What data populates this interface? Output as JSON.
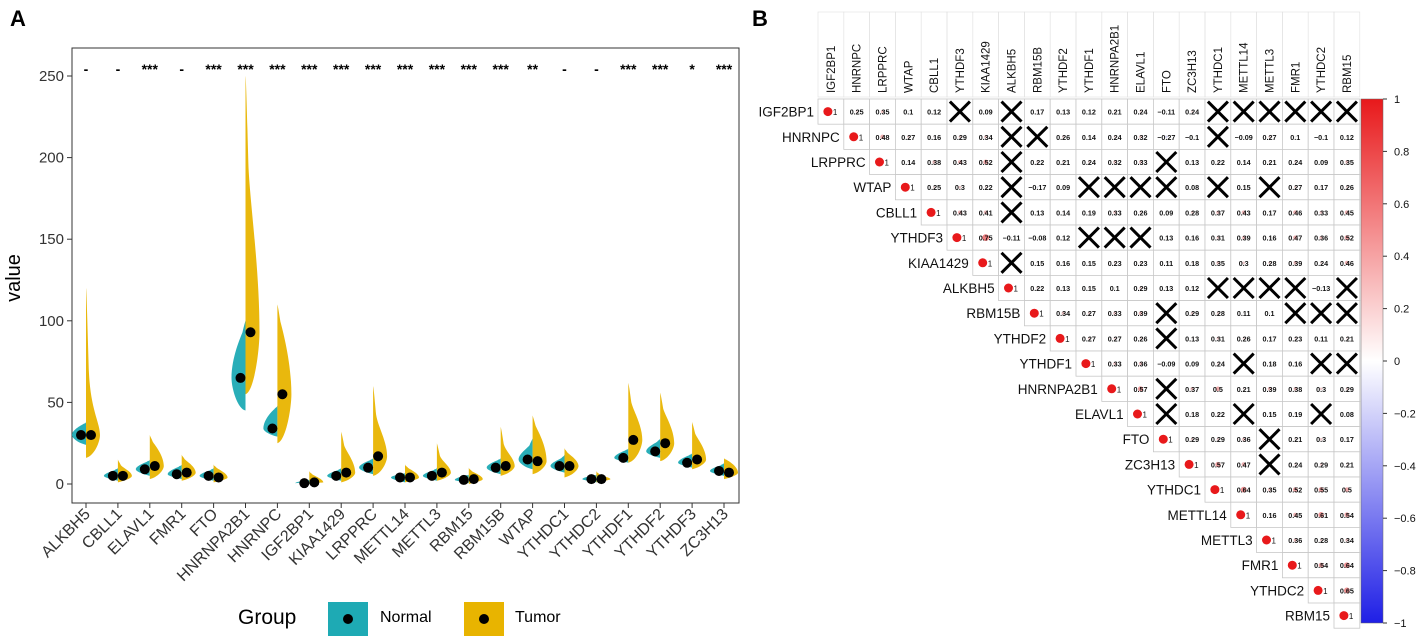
{
  "colors": {
    "normal": "#1eaab4",
    "tumor": "#e8b400",
    "sig_text": "#000000",
    "dot": "#000000",
    "corr_pos": "#e8191b",
    "corr_neg": "#1f1fe6",
    "cell_border": "#c8c8c8",
    "plot_border": "#333333"
  },
  "chart_data": [
    {
      "panel_label": "A",
      "type": "violin",
      "title": "",
      "xlabel": "",
      "ylabel": "value",
      "ylim": [
        -5,
        262
      ],
      "yticks": [
        0,
        50,
        100,
        150,
        200,
        250
      ],
      "categories": [
        "ALKBH5",
        "CBLL1",
        "ELAVL1",
        "FMR1",
        "FTO",
        "HNRNPA2B1",
        "HNRNPC",
        "IGF2BP1",
        "KIAA1429",
        "LRPPRC",
        "METTL14",
        "METTL3",
        "RBM15",
        "RBM15B",
        "WTAP",
        "YTHDC1",
        "YTHDC2",
        "YTHDF1",
        "YTHDF2",
        "YTHDF3",
        "ZC3H13"
      ],
      "significance": [
        "-",
        "-",
        "***",
        "-",
        "***",
        "***",
        "***",
        "***",
        "***",
        "***",
        "***",
        "***",
        "***",
        "***",
        "**",
        "-",
        "-",
        "***",
        "***",
        "*",
        "***"
      ],
      "series": [
        {
          "name": "Normal",
          "medians": [
            30,
            5,
            9,
            6,
            5,
            65,
            34,
            0.5,
            5,
            10,
            4,
            5,
            2.5,
            10,
            15,
            11,
            3,
            16,
            20,
            13,
            8
          ],
          "lower": [
            24,
            2,
            5,
            3,
            2,
            45,
            29,
            0,
            2,
            6,
            1,
            2,
            0.5,
            6,
            9,
            7,
            1,
            13,
            16,
            10,
            5
          ],
          "upper": [
            36,
            8,
            13,
            10,
            8,
            90,
            45,
            2,
            8,
            14,
            6,
            8,
            5,
            14,
            22,
            15,
            5,
            20,
            25,
            17,
            11
          ],
          "max": [
            38,
            10,
            15,
            12,
            10,
            100,
            48,
            3,
            10,
            16,
            7,
            10,
            6,
            16,
            28,
            18,
            6,
            22,
            28,
            19,
            13
          ]
        },
        {
          "name": "Tumor",
          "medians": [
            30,
            5,
            11,
            7,
            4,
            93,
            55,
            1,
            7,
            17,
            4,
            7,
            3,
            11,
            14,
            11,
            3,
            27,
            25,
            15,
            7
          ],
          "lower": [
            16,
            1,
            3,
            2,
            1,
            55,
            25,
            0,
            1,
            5,
            1,
            2,
            0,
            5,
            6,
            4,
            1,
            13,
            14,
            9,
            3
          ],
          "upper": [
            45,
            10,
            24,
            14,
            9,
            170,
            95,
            5,
            20,
            35,
            9,
            14,
            7,
            20,
            33,
            18,
            5,
            45,
            42,
            28,
            14
          ],
          "max": [
            120,
            15,
            30,
            18,
            12,
            250,
            110,
            8,
            32,
            60,
            12,
            25,
            10,
            35,
            42,
            22,
            8,
            62,
            56,
            38,
            16
          ]
        }
      ],
      "legend": {
        "title": "Group",
        "position": "bottom",
        "items": [
          "Normal",
          "Tumor"
        ]
      }
    },
    {
      "panel_label": "B",
      "type": "correlation_matrix",
      "genes": [
        "IGF2BP1",
        "HNRNPC",
        "LRPPRC",
        "WTAP",
        "CBLL1",
        "YTHDF3",
        "KIAA1429",
        "ALKBH5",
        "RBM15B",
        "YTHDF2",
        "YTHDF1",
        "HNRNPA2B1",
        "ELAVL1",
        "FTO",
        "ZC3H13",
        "YTHDC1",
        "METTL14",
        "METTL3",
        "FMR1",
        "YTHDC2",
        "RBM15"
      ],
      "matrix": [
        [
          1,
          0.25,
          0.35,
          0.1,
          0.12,
          "X",
          0.09,
          "X",
          0.17,
          0.13,
          0.12,
          0.21,
          0.24,
          -0.11,
          0.24,
          "X",
          "X",
          "X",
          "X",
          "X",
          "X"
        ],
        [
          1,
          0.48,
          0.27,
          0.16,
          0.29,
          0.34,
          "X",
          "X",
          0.26,
          0.14,
          0.24,
          0.32,
          -0.27,
          -0.1,
          "X",
          -0.09,
          0.27,
          0.1,
          -0.1,
          0.12
        ],
        [
          1,
          0.14,
          0.38,
          0.43,
          0.52,
          "X",
          0.22,
          0.21,
          0.24,
          0.32,
          0.33,
          "X",
          0.13,
          0.22,
          0.14,
          0.21,
          0.24,
          0.09,
          0.35
        ],
        [
          1,
          0.25,
          0.3,
          0.22,
          "X",
          -0.17,
          0.09,
          "X",
          "X",
          "X",
          "X",
          0.08,
          "X",
          0.15,
          "X",
          0.27,
          0.17,
          0.26
        ],
        [
          1,
          0.43,
          0.41,
          "X",
          0.13,
          0.14,
          0.19,
          0.33,
          0.26,
          0.09,
          0.28,
          0.37,
          0.43,
          0.17,
          0.46,
          0.33,
          0.45
        ],
        [
          1,
          0.75,
          -0.11,
          -0.08,
          0.12,
          "X",
          "X",
          "X",
          0.13,
          0.16,
          0.31,
          0.39,
          0.16,
          0.47,
          0.36,
          0.52
        ],
        [
          1,
          "X",
          0.15,
          0.16,
          0.15,
          0.23,
          0.23,
          0.11,
          0.18,
          0.35,
          0.3,
          0.28,
          0.39,
          0.24,
          0.46
        ],
        [
          1,
          0.22,
          0.13,
          0.15,
          0.1,
          0.29,
          0.13,
          0.12,
          "X",
          "X",
          "X",
          "X",
          -0.13,
          "X"
        ],
        [
          1,
          0.34,
          0.27,
          0.33,
          0.39,
          "X",
          0.29,
          0.28,
          0.11,
          0.1,
          "X",
          "X",
          "X"
        ],
        [
          1,
          0.27,
          0.27,
          0.26,
          "X",
          0.13,
          0.31,
          0.26,
          0.17,
          0.23,
          0.11,
          0.21
        ],
        [
          1,
          0.33,
          0.36,
          -0.09,
          0.09,
          0.24,
          "X",
          0.18,
          0.16,
          "X",
          "X"
        ],
        [
          1,
          0.57,
          "X",
          0.37,
          0.5,
          0.21,
          0.39,
          0.38,
          0.3,
          0.29
        ],
        [
          1,
          "X",
          0.18,
          0.22,
          "X",
          0.15,
          0.19,
          "X",
          0.08
        ],
        [
          1,
          0.29,
          0.29,
          0.36,
          "X",
          0.21,
          0.3,
          0.17
        ],
        [
          1,
          0.57,
          0.47,
          "X",
          0.24,
          0.29,
          0.21
        ],
        [
          1,
          0.64,
          0.35,
          0.52,
          0.55,
          0.5
        ],
        [
          1,
          0.16,
          0.45,
          0.61,
          0.54
        ],
        [
          1,
          0.36,
          0.28,
          0.34
        ],
        [
          1,
          0.54,
          0.64
        ],
        [
          1,
          0.65
        ],
        [
          1
        ]
      ],
      "colorbar": {
        "range": [
          -1,
          1
        ],
        "ticks": [
          1,
          0.8,
          0.6,
          0.4,
          0.2,
          0,
          -0.2,
          -0.4,
          -0.6,
          -0.8,
          -1
        ],
        "tick_labels": [
          "1",
          "0.8",
          "0.6",
          "0.4",
          "0.2",
          "0",
          "−0.2",
          "−0.4",
          "−0.6",
          "−0.8",
          "−1"
        ]
      }
    }
  ]
}
